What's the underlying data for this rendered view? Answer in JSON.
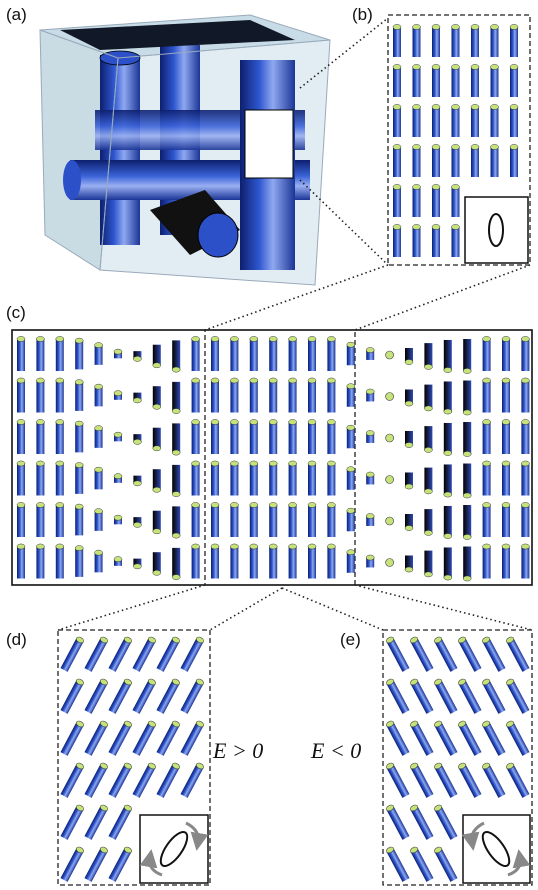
{
  "labels": {
    "a": "(a)",
    "b": "(b)",
    "c": "(c)",
    "d": "(d)",
    "e": "(e)"
  },
  "annotations": {
    "positive": "E > 0",
    "negative": "E < 0"
  }
}
